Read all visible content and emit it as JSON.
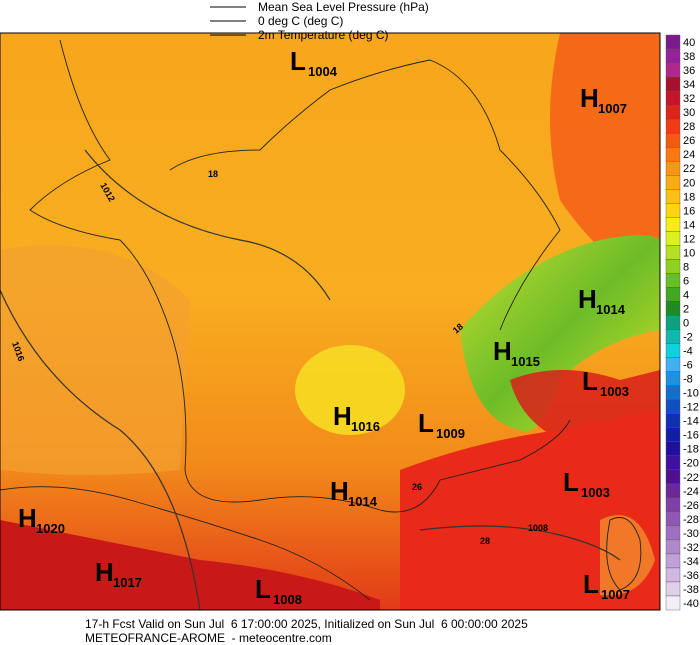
{
  "legend": [
    {
      "label": "Mean Sea Level Pressure (hPa)"
    },
    {
      "label": "0 deg C (deg C)"
    },
    {
      "label": "2m Temperature (deg C)"
    }
  ],
  "pressure_centers": [
    {
      "letter": "L",
      "value": "1004"
    },
    {
      "letter": "H",
      "value": "1007"
    },
    {
      "letter": "H",
      "value": "1014"
    },
    {
      "letter": "H",
      "value": "1015"
    },
    {
      "letter": "L",
      "value": "1003"
    },
    {
      "letter": "H",
      "value": "1016"
    },
    {
      "letter": "L",
      "value": "1009"
    },
    {
      "letter": "L",
      "value": "1003"
    },
    {
      "letter": "H",
      "value": "1014"
    },
    {
      "letter": "H",
      "value": "1020"
    },
    {
      "letter": "H",
      "value": "1017"
    },
    {
      "letter": "L",
      "value": "1008"
    },
    {
      "letter": "L",
      "value": "1007"
    }
  ],
  "contour_labels": [
    "18",
    "1012",
    "1016",
    "18",
    "26",
    "28",
    "1008"
  ],
  "colorbar": {
    "levels": [
      40,
      38,
      36,
      34,
      32,
      30,
      28,
      26,
      24,
      22,
      20,
      18,
      16,
      14,
      12,
      10,
      8,
      6,
      4,
      2,
      0,
      -2,
      -4,
      -6,
      -8,
      -10,
      -12,
      -14,
      -16,
      -18,
      -20,
      -22,
      -24,
      -26,
      -28,
      -30,
      -32,
      -34,
      -36,
      -38,
      -40
    ],
    "colors": [
      "#7a1a8c",
      "#98209a",
      "#b0288c",
      "#a8102c",
      "#c8142a",
      "#e0221a",
      "#f03c14",
      "#f55a12",
      "#f87a12",
      "#fa9612",
      "#fbac14",
      "#fcc014",
      "#fcd414",
      "#f8ec18",
      "#dcf020",
      "#b4e024",
      "#90d024",
      "#64c024",
      "#40a824",
      "#208a24",
      "#10a080",
      "#10b8b0",
      "#10d0e0",
      "#40b0f0",
      "#2090e0",
      "#1070d0",
      "#1050c0",
      "#1030b0",
      "#1020a0",
      "#2010a0",
      "#4010a0",
      "#501090",
      "#6a2898",
      "#8040a8",
      "#9058b4",
      "#a070c0",
      "#b088cc",
      "#c0a0d8",
      "#d0b8e2",
      "#e0d0ec",
      "#f4eef8"
    ]
  },
  "footer": {
    "line1": "17-h Fcst Valid on Sun Jul  6 17:00:00 2025, Initialized on Sun Jul  6 00:00:00 2025",
    "line2": "METEOFRANCE-AROME  - meteocentre.com"
  }
}
